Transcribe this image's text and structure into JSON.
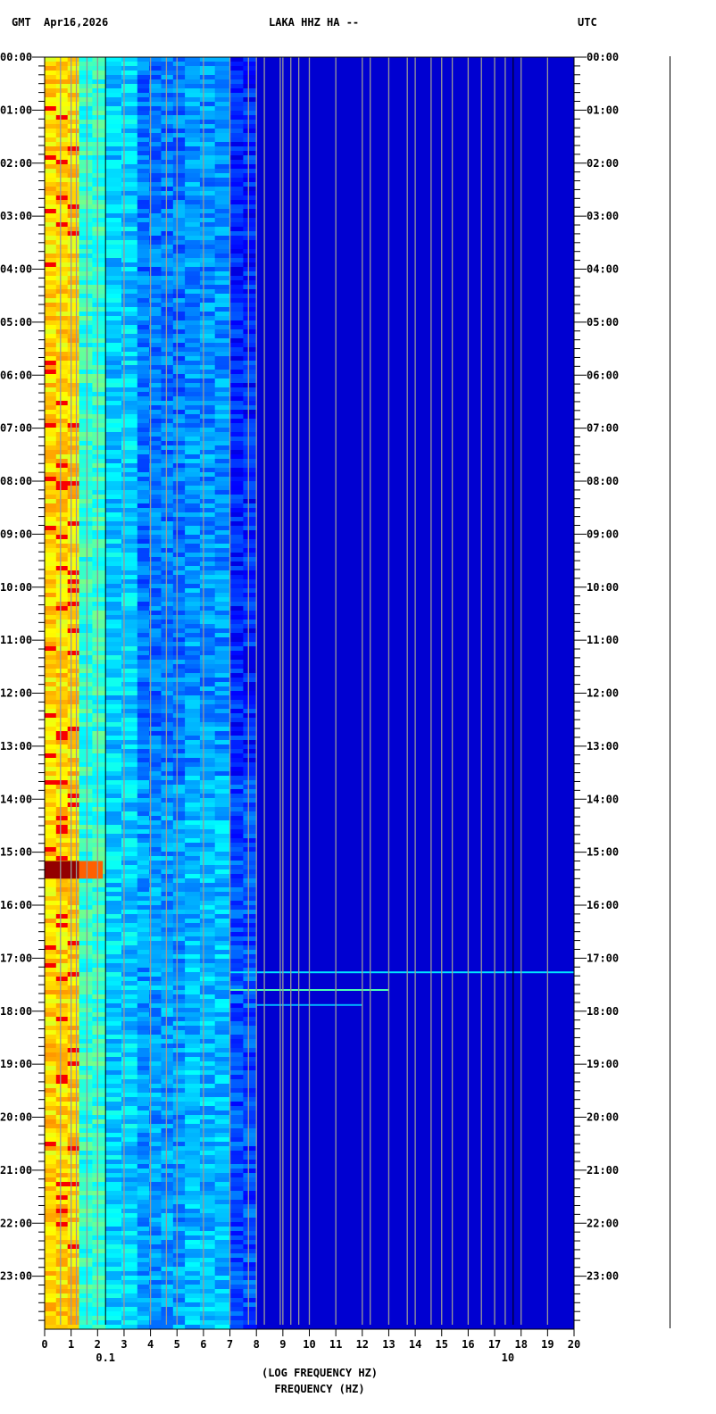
{
  "header": {
    "left_zone": "GMT",
    "date": "Apr16,2026",
    "station": "LAKA HHZ HA --",
    "right_zone": "UTC"
  },
  "chart_data": {
    "type": "heatmap",
    "title": "LAKA HHZ HA --",
    "xlabel": "FREQUENCY (HZ)",
    "xlabel_overlay": "(LOG FREQUENCY HZ)",
    "xlim": [
      0,
      20
    ],
    "x_ticks": [
      "0",
      "1",
      "2",
      "3",
      "4",
      "5",
      "6",
      "7",
      "8",
      "9",
      "10",
      "11",
      "12",
      "13",
      "14",
      "15",
      "16",
      "17",
      "18",
      "19",
      "20"
    ],
    "x_ticks_overlay": [
      "0.1",
      "10"
    ],
    "ylim_hours": [
      0,
      24
    ],
    "y_ticks": [
      "00:00",
      "01:00",
      "02:00",
      "03:00",
      "04:00",
      "05:00",
      "06:00",
      "07:00",
      "08:00",
      "09:00",
      "10:00",
      "11:00",
      "12:00",
      "13:00",
      "14:00",
      "15:00",
      "16:00",
      "17:00",
      "18:00",
      "19:00",
      "20:00",
      "21:00",
      "22:00",
      "23:00"
    ],
    "colormap": "jet",
    "bands": [
      {
        "f_min": 0,
        "f_max": 1.3,
        "level": 0.66
      },
      {
        "f_min": 1.3,
        "f_max": 2.3,
        "level": 0.42
      },
      {
        "f_min": 2.3,
        "f_max": 3.5,
        "level": 0.33
      },
      {
        "f_min": 3.5,
        "f_max": 5.3,
        "level": 0.24
      },
      {
        "f_min": 5.3,
        "f_max": 7.0,
        "level": 0.27
      },
      {
        "f_min": 7.0,
        "f_max": 8.0,
        "level": 0.16
      },
      {
        "f_min": 8.0,
        "f_max": 20,
        "level": 0.08
      }
    ],
    "events": [
      {
        "time": "15:10",
        "end": "15:30",
        "f_min": 0,
        "f_max": 1.3,
        "level": 0.98
      },
      {
        "time": "15:10",
        "end": "15:30",
        "f_min": 1.3,
        "f_max": 2.2,
        "level": 0.78
      },
      {
        "time": "17:15",
        "end": "17:17",
        "f_min": 7,
        "f_max": 20,
        "level": 0.35
      },
      {
        "time": "17:35",
        "end": "17:37",
        "f_min": 7,
        "f_max": 13,
        "level": 0.45
      },
      {
        "time": "17:52",
        "end": "17:54",
        "f_min": 8,
        "f_max": 12,
        "level": 0.3
      }
    ],
    "overlay_lines_hz": [
      0.6,
      1,
      1.2,
      1.6,
      2,
      3,
      4,
      4.6,
      5,
      6,
      7,
      7.7,
      8,
      8.3,
      8.9,
      9,
      9.3,
      9.6,
      10,
      11,
      12,
      12.3,
      13,
      13.7,
      14,
      14.6,
      15,
      15.4,
      16,
      16.5,
      17,
      17.4,
      18,
      19
    ],
    "overlay_dark_lines_hz": [
      2.3,
      17.7
    ]
  }
}
